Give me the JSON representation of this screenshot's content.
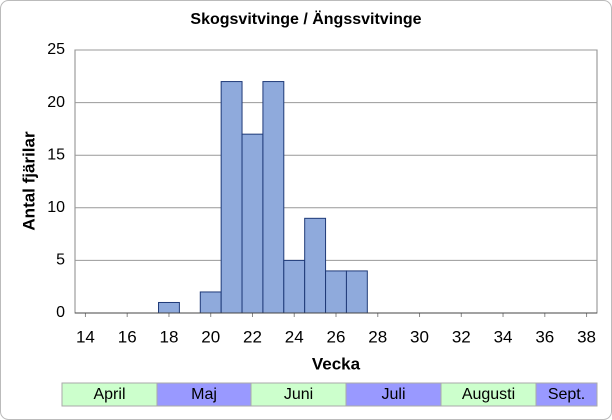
{
  "chart_data": {
    "type": "histogram",
    "title": "Skogsvitvinge / Ängssvitvinge",
    "x_label": "Vecka",
    "y_label": "Antal fjärilar",
    "x": [
      18,
      19,
      20,
      21,
      22,
      23,
      24,
      25,
      26,
      27
    ],
    "values": [
      1,
      0,
      2,
      22,
      17,
      22,
      5,
      9,
      4,
      4
    ],
    "color": "#8faadc",
    "edge_color": "#1f3a78",
    "xlim": [
      13.5,
      38.5
    ],
    "xticks": [
      14,
      16,
      18,
      20,
      22,
      24,
      26,
      28,
      30,
      32,
      34,
      36,
      38
    ],
    "ylim": [
      0,
      25
    ],
    "yticks": [
      0,
      5,
      10,
      15,
      20,
      25
    ],
    "grid": true,
    "months": [
      "April",
      "Maj",
      "Juni",
      "Juli",
      "Augusti",
      "Sept."
    ],
    "month_colors": [
      "#ccffcc",
      "#9999ff"
    ]
  }
}
